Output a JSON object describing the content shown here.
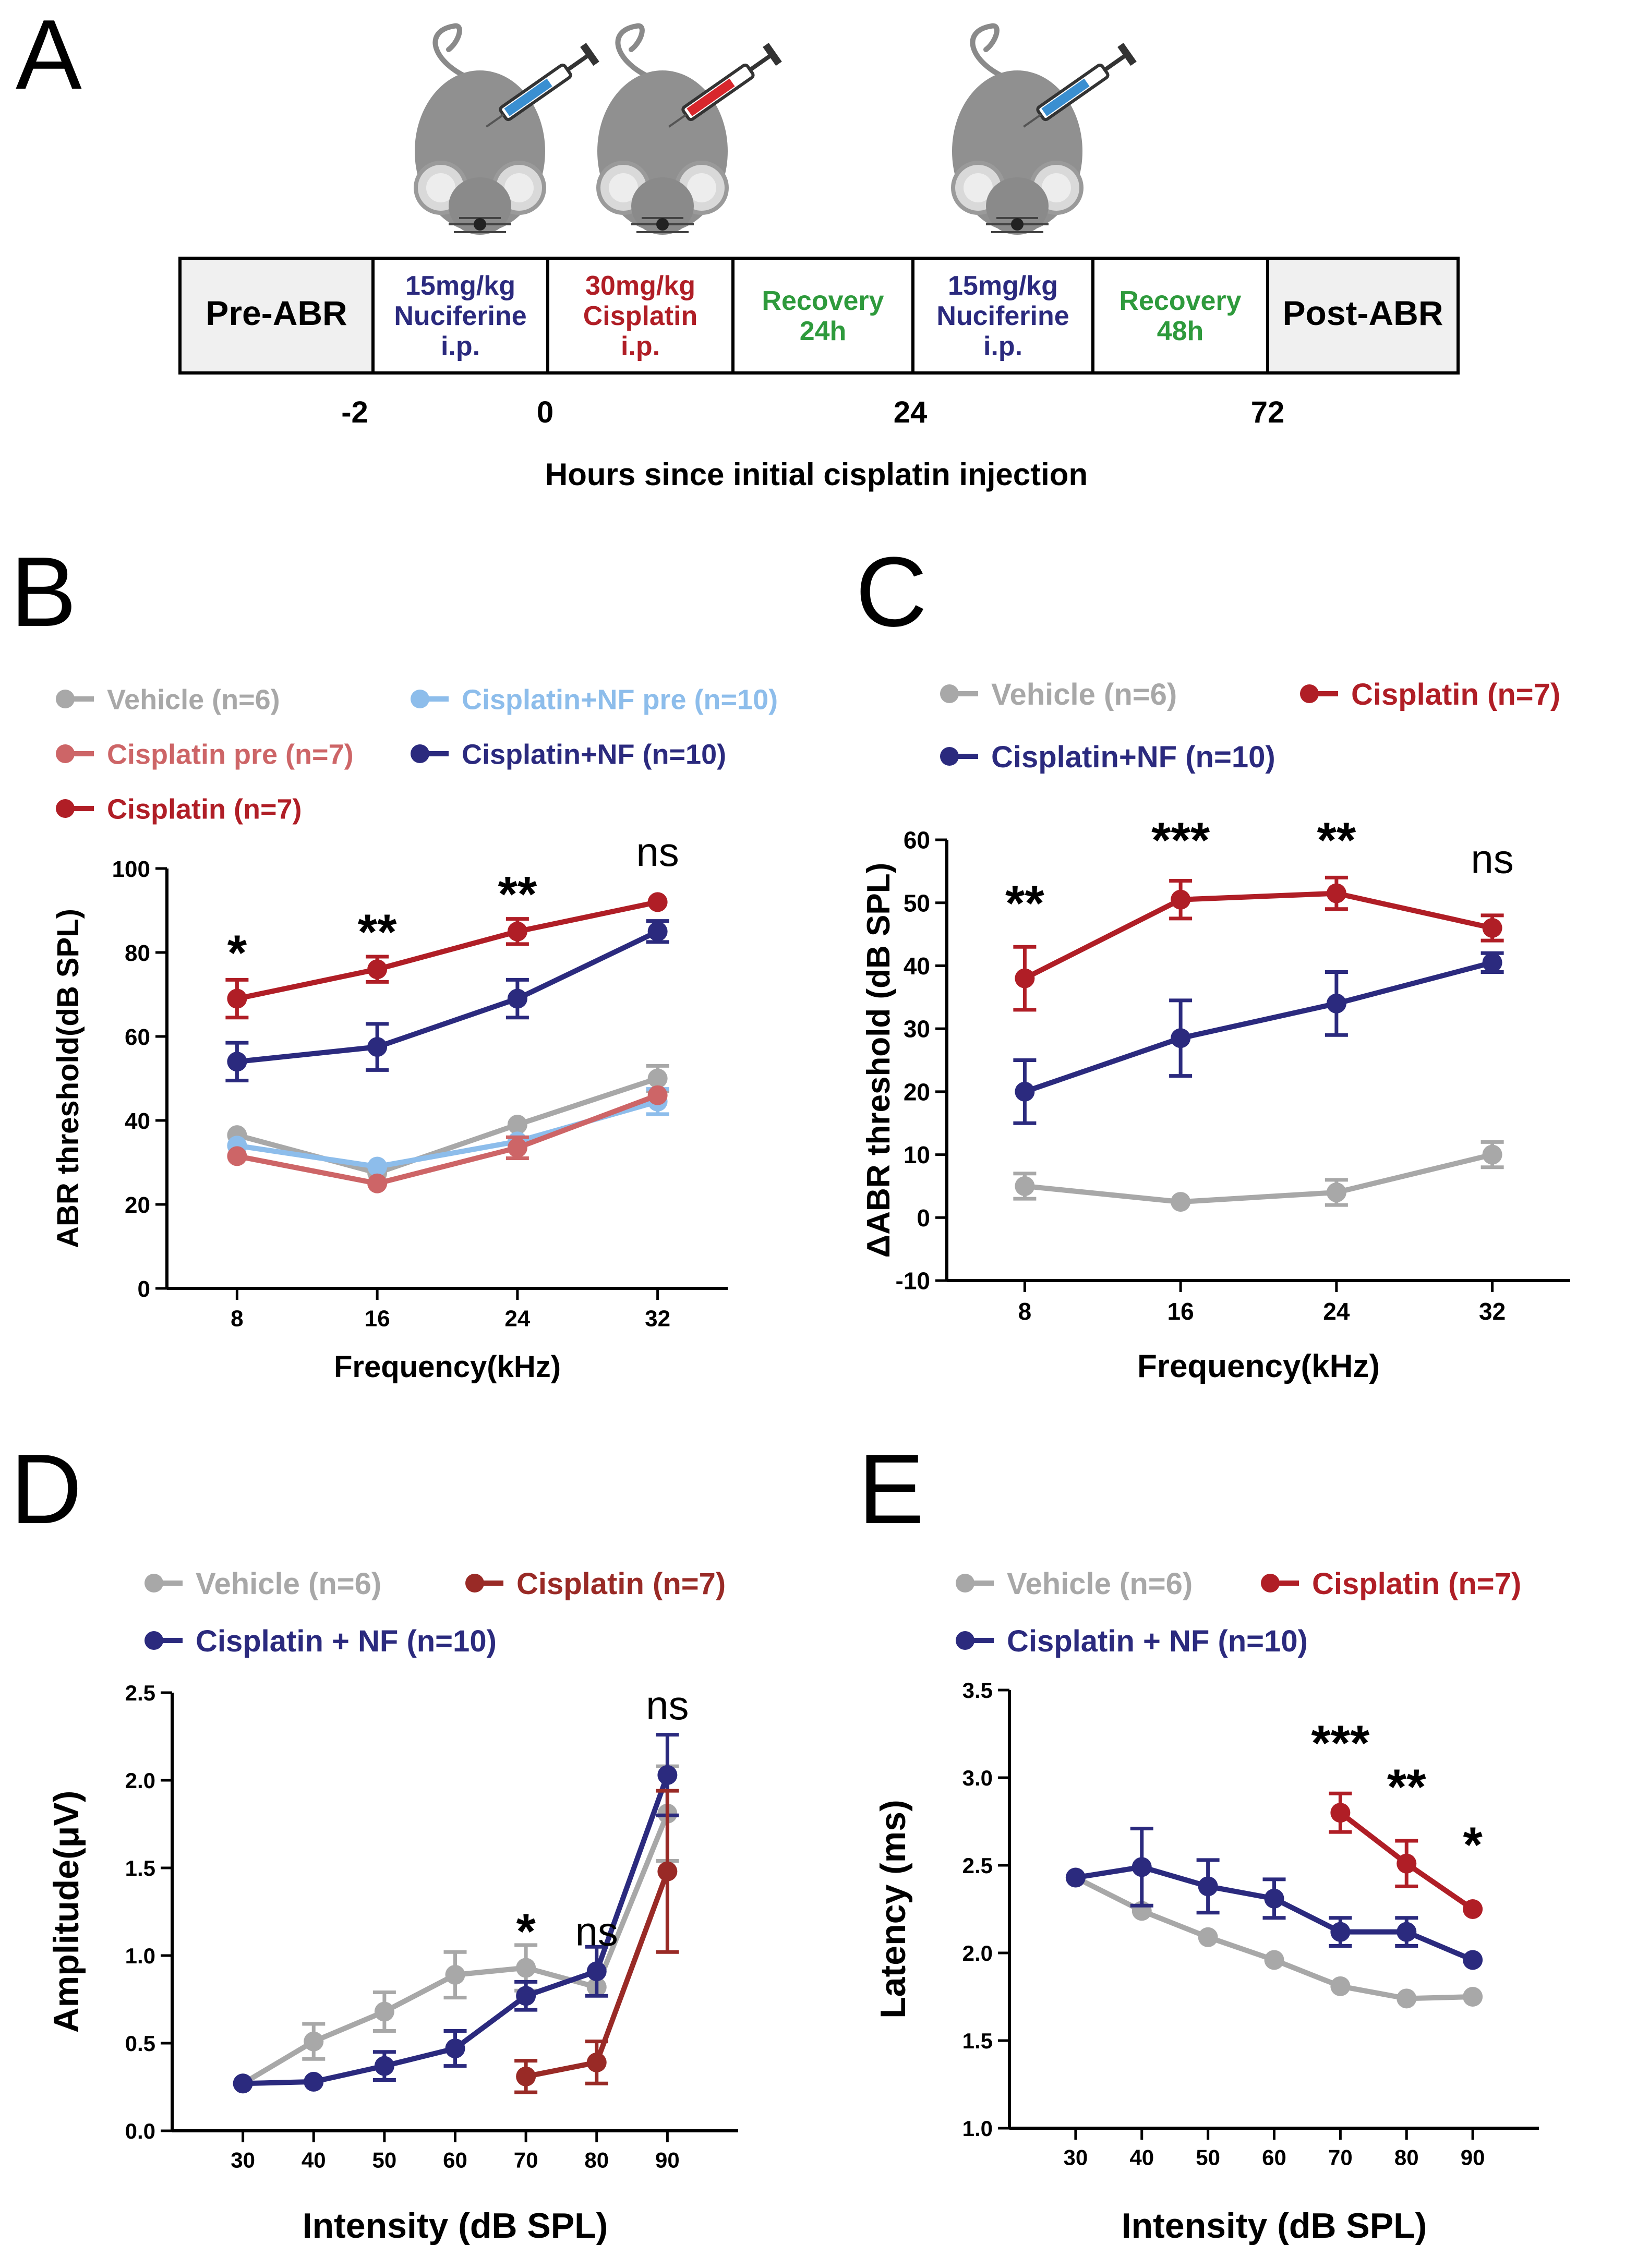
{
  "colors": {
    "vehicle": "#a8a8a8",
    "cisplatin": "#b01e26",
    "cisplatin_pre": "#cd6567",
    "nf": "#2b2a7e",
    "nf_pre": "#8dbdeb",
    "cisplatin_dark": "#992a26",
    "recovery": "#2e9a3c",
    "axis": "#000000",
    "mouse": "#909090"
  },
  "panelA": {
    "label": "A",
    "boxes": [
      {
        "lines": [
          "Pre-ABR"
        ],
        "color": "#000000"
      },
      {
        "lines": [
          "15mg/kg",
          "Nuciferine",
          "i.p."
        ],
        "color": "#2b2a7e"
      },
      {
        "lines": [
          "30mg/kg",
          "Cisplatin",
          "i.p."
        ],
        "color": "#b01e26"
      },
      {
        "lines": [
          "Recovery",
          "24h"
        ],
        "color": "#2e9a3c"
      },
      {
        "lines": [
          "15mg/kg",
          "Nuciferine",
          "i.p."
        ],
        "color": "#2b2a7e"
      },
      {
        "lines": [
          "Recovery",
          "48h"
        ],
        "color": "#2e9a3c"
      },
      {
        "lines": [
          "Post-ABR"
        ],
        "color": "#000000"
      }
    ],
    "time_ticks": [
      "-2",
      "0",
      "24",
      "72"
    ],
    "axis_title": "Hours since initial cisplatin injection",
    "syringes": [
      {
        "color": "#3a8fd1",
        "name": "nuciferine"
      },
      {
        "color": "#d8262c",
        "name": "cisplatin"
      },
      {
        "color": "#3a8fd1",
        "name": "nuciferine"
      }
    ]
  },
  "chart_data": [
    {
      "panel": "B",
      "type": "line",
      "xlabel": "Frequency(kHz)",
      "ylabel": "ABR threshold(dB SPL)",
      "categories": [
        "8",
        "16",
        "24",
        "32"
      ],
      "ylim": [
        0,
        100
      ],
      "yticks": [
        "0",
        "20",
        "40",
        "60",
        "80",
        "100"
      ],
      "legend": [
        {
          "label": "Vehicle (n=6)",
          "color": "#a8a8a8"
        },
        {
          "label": "Cisplatin+NF pre (n=10)",
          "color": "#8dbdeb"
        },
        {
          "label": "Cisplatin pre (n=7)",
          "color": "#cd6567"
        },
        {
          "label": "Cisplatin+NF (n=10)",
          "color": "#2b2a7e"
        },
        {
          "label": "Cisplatin (n=7)",
          "color": "#b01e26"
        }
      ],
      "series": [
        {
          "name": "Vehicle (n=6)",
          "color": "#a8a8a8",
          "x": [
            8,
            16,
            24,
            32
          ],
          "values": [
            36.5,
            27.5,
            39,
            50
          ],
          "err": [
            1.5,
            1.5,
            1.5,
            3
          ]
        },
        {
          "name": "Cisplatin+NF pre (n=10)",
          "color": "#8dbdeb",
          "x": [
            8,
            16,
            24,
            32
          ],
          "values": [
            34,
            29,
            35,
            44.5
          ],
          "err": [
            1,
            1,
            1.5,
            3
          ]
        },
        {
          "name": "Cisplatin pre (n=7)",
          "color": "#cd6567",
          "x": [
            8,
            16,
            24,
            32
          ],
          "values": [
            31.5,
            25,
            33.5,
            46
          ],
          "err": [
            1.5,
            1,
            2.5,
            2
          ]
        },
        {
          "name": "Cisplatin+NF (n=10)",
          "color": "#2b2a7e",
          "x": [
            8,
            16,
            24,
            32
          ],
          "values": [
            54,
            57.5,
            69,
            85
          ],
          "err": [
            4.5,
            5.5,
            4.5,
            2.5
          ]
        },
        {
          "name": "Cisplatin (n=7)",
          "color": "#b01e26",
          "x": [
            8,
            16,
            24,
            32
          ],
          "values": [
            69,
            76,
            85,
            92
          ],
          "err": [
            4.5,
            3,
            3,
            0.5
          ]
        }
      ],
      "annotations": [
        {
          "text": "*",
          "x": 8,
          "y": 80
        },
        {
          "text": "**",
          "x": 16,
          "y": 85
        },
        {
          "text": "**",
          "x": 24,
          "y": 94
        },
        {
          "text": "ns",
          "x": 32,
          "y": 104
        }
      ]
    },
    {
      "panel": "C",
      "type": "line",
      "xlabel": "Frequency(kHz)",
      "ylabel": "ΔABR threshold (dB SPL)",
      "categories": [
        "8",
        "16",
        "24",
        "32"
      ],
      "ylim": [
        -10,
        60
      ],
      "yticks": [
        "-10",
        "0",
        "10",
        "20",
        "30",
        "40",
        "50",
        "60"
      ],
      "legend": [
        {
          "label": "Vehicle (n=6)",
          "color": "#a8a8a8"
        },
        {
          "label": "Cisplatin  (n=7)",
          "color": "#b01e26"
        },
        {
          "label": "Cisplatin+NF (n=10)",
          "color": "#2b2a7e"
        }
      ],
      "series": [
        {
          "name": "Vehicle (n=6)",
          "color": "#a8a8a8",
          "x": [
            8,
            16,
            24,
            32
          ],
          "values": [
            5,
            2.5,
            4,
            10
          ],
          "err": [
            2,
            0.5,
            2,
            2
          ]
        },
        {
          "name": "Cisplatin+NF (n=10)",
          "color": "#2b2a7e",
          "x": [
            8,
            16,
            24,
            32
          ],
          "values": [
            20,
            28.5,
            34,
            40.5
          ],
          "err": [
            5,
            6,
            5,
            1.5
          ]
        },
        {
          "name": "Cisplatin  (n=7)",
          "color": "#b01e26",
          "x": [
            8,
            16,
            24,
            32
          ],
          "values": [
            38,
            50.5,
            51.5,
            46
          ],
          "err": [
            5,
            3,
            2.5,
            2
          ]
        }
      ],
      "annotations": [
        {
          "text": "**",
          "x": 8,
          "y": 50
        },
        {
          "text": "***",
          "x": 16,
          "y": 60
        },
        {
          "text": "**",
          "x": 24,
          "y": 60
        },
        {
          "text": "ns",
          "x": 32,
          "y": 57
        }
      ]
    },
    {
      "panel": "D",
      "type": "line",
      "xlabel": "Intensity (dB SPL)",
      "ylabel": "Amplitude(μV)",
      "categories": [
        "30",
        "40",
        "50",
        "60",
        "70",
        "80",
        "90"
      ],
      "ylim": [
        0,
        2.5
      ],
      "yticks": [
        "0.0",
        "0.5",
        "1.0",
        "1.5",
        "2.0",
        "2.5"
      ],
      "legend": [
        {
          "label": "Vehicle  (n=6)",
          "color": "#a8a8a8"
        },
        {
          "label": "Cisplatin (n=7)",
          "color": "#992a26"
        },
        {
          "label": "Cisplatin + NF (n=10)",
          "color": "#2b2a7e"
        }
      ],
      "series": [
        {
          "name": "Vehicle  (n=6)",
          "color": "#a8a8a8",
          "x": [
            30,
            40,
            50,
            60,
            70,
            80,
            90
          ],
          "values": [
            0.27,
            0.51,
            0.68,
            0.89,
            0.93,
            0.82,
            1.81
          ],
          "err": [
            0.02,
            0.1,
            0.11,
            0.13,
            0.13,
            0.05,
            0.27
          ]
        },
        {
          "name": "Cisplatin + NF (n=10)",
          "color": "#2b2a7e",
          "x": [
            30,
            40,
            50,
            60,
            70,
            80,
            90
          ],
          "values": [
            0.27,
            0.28,
            0.37,
            0.47,
            0.77,
            0.91,
            2.03
          ],
          "err": [
            0.01,
            0.02,
            0.08,
            0.1,
            0.08,
            0.14,
            0.23
          ]
        },
        {
          "name": "Cisplatin (n=7)",
          "color": "#992a26",
          "x": [
            70,
            80,
            90
          ],
          "values": [
            0.31,
            0.39,
            1.48
          ],
          "err": [
            0.09,
            0.12,
            0.46
          ]
        }
      ],
      "annotations": [
        {
          "text": "*",
          "x": 70,
          "y": 1.14
        },
        {
          "text": "ns",
          "x": 80,
          "y": 1.14
        },
        {
          "text": "ns",
          "x": 90,
          "y": 2.43
        }
      ]
    },
    {
      "panel": "E",
      "type": "line",
      "xlabel": "Intensity (dB SPL)",
      "ylabel": "Latency (ms)",
      "categories": [
        "30",
        "40",
        "50",
        "60",
        "70",
        "80",
        "90"
      ],
      "ylim": [
        1.0,
        3.5
      ],
      "yticks": [
        "1.0",
        "1.5",
        "2.0",
        "2.5",
        "3.0",
        "3.5"
      ],
      "legend": [
        {
          "label": "Vehicle (n=6)",
          "color": "#a8a8a8"
        },
        {
          "label": "Cisplatin (n=7)",
          "color": "#b01e26"
        },
        {
          "label": "Cisplatin + NF (n=10)",
          "color": "#2b2a7e"
        }
      ],
      "series": [
        {
          "name": "Vehicle (n=6)",
          "color": "#a8a8a8",
          "x": [
            30,
            40,
            50,
            60,
            70,
            80,
            90
          ],
          "values": [
            2.43,
            2.24,
            2.09,
            1.96,
            1.81,
            1.74,
            1.75
          ],
          "err": [
            0.01,
            0.01,
            0.01,
            0.01,
            0.01,
            0.01,
            0.01
          ]
        },
        {
          "name": "Cisplatin + NF (n=10)",
          "color": "#2b2a7e",
          "x": [
            30,
            40,
            50,
            60,
            70,
            80,
            90
          ],
          "values": [
            2.43,
            2.49,
            2.38,
            2.31,
            2.12,
            2.12,
            1.96
          ],
          "err": [
            0.01,
            0.22,
            0.15,
            0.11,
            0.08,
            0.08,
            0.05
          ]
        },
        {
          "name": "Cisplatin (n=7)",
          "color": "#b01e26",
          "x": [
            70,
            80,
            90
          ],
          "values": [
            2.8,
            2.51,
            2.25
          ],
          "err": [
            0.11,
            0.13,
            0.05
          ]
        }
      ],
      "annotations": [
        {
          "text": "***",
          "x": 70,
          "y": 3.2
        },
        {
          "text": "**",
          "x": 80,
          "y": 2.95
        },
        {
          "text": "*",
          "x": 90,
          "y": 2.62
        }
      ]
    }
  ]
}
